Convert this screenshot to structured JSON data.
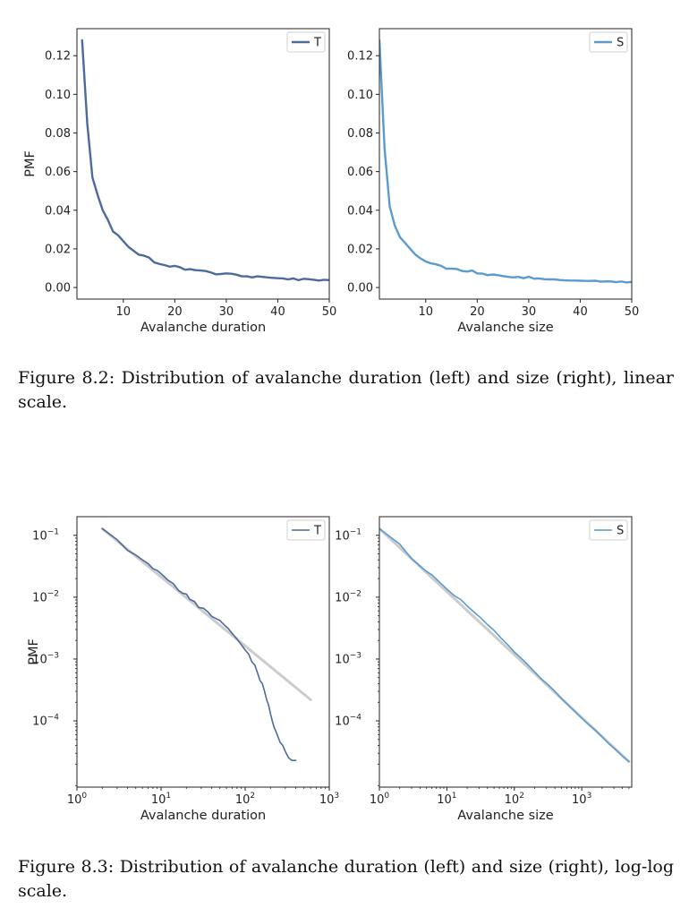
{
  "figures": [
    {
      "caption": "Figure 8.2: Distribution of avalanche duration (left) and size (right), linear scale.",
      "chart_data": [
        {
          "type": "line",
          "xlabel": "Avalanche duration",
          "ylabel": "PMF",
          "xlim": [
            1,
            50
          ],
          "ylim": [
            -0.006,
            0.134
          ],
          "xticks": [
            10,
            20,
            30,
            40,
            50
          ],
          "yticks": [
            0.0,
            0.02,
            0.04,
            0.06,
            0.08,
            0.1,
            0.12
          ],
          "ytick_labels": [
            "0.00",
            "0.02",
            "0.04",
            "0.06",
            "0.08",
            "0.10",
            "0.12"
          ],
          "legend": "top-right",
          "series": [
            {
              "name": "T",
              "color": "#4c6a9c",
              "x": [
                2,
                3,
                4,
                5,
                6,
                7,
                8,
                9,
                10,
                11,
                12,
                13,
                14,
                15,
                16,
                17,
                18,
                19,
                20,
                21,
                22,
                23,
                24,
                25,
                26,
                27,
                28,
                29,
                30,
                31,
                32,
                33,
                34,
                35,
                36,
                37,
                38,
                39,
                40,
                41,
                42,
                43,
                44,
                45,
                46,
                47,
                48,
                49,
                50
              ],
              "y": [
                0.128,
                0.085,
                0.057,
                0.048,
                0.04,
                0.035,
                0.029,
                0.027,
                0.024,
                0.021,
                0.019,
                0.017,
                0.0165,
                0.0155,
                0.013,
                0.0122,
                0.0116,
                0.0108,
                0.0112,
                0.0105,
                0.0092,
                0.0095,
                0.009,
                0.0088,
                0.0085,
                0.0078,
                0.0068,
                0.007,
                0.0073,
                0.0071,
                0.0066,
                0.0058,
                0.0058,
                0.0052,
                0.0058,
                0.0055,
                0.0052,
                0.005,
                0.0048,
                0.0047,
                0.0042,
                0.0047,
                0.0038,
                0.0045,
                0.0043,
                0.004,
                0.0036,
                0.004,
                0.0038
              ]
            }
          ]
        },
        {
          "type": "line",
          "xlabel": "Avalanche size",
          "ylabel": "",
          "xlim": [
            1,
            50
          ],
          "ylim": [
            -0.006,
            0.134
          ],
          "xticks": [
            10,
            20,
            30,
            40,
            50
          ],
          "yticks": [
            0.0,
            0.02,
            0.04,
            0.06,
            0.08,
            0.1,
            0.12
          ],
          "ytick_labels": [
            "0.00",
            "0.02",
            "0.04",
            "0.06",
            "0.08",
            "0.10",
            "0.12"
          ],
          "legend": "top-right",
          "series": [
            {
              "name": "S",
              "color": "#5b9bd0",
              "x": [
                1,
                2,
                3,
                4,
                5,
                6,
                7,
                8,
                9,
                10,
                11,
                12,
                13,
                14,
                15,
                16,
                17,
                18,
                19,
                20,
                21,
                22,
                23,
                24,
                25,
                26,
                27,
                28,
                29,
                30,
                31,
                32,
                33,
                34,
                35,
                36,
                37,
                38,
                39,
                40,
                41,
                42,
                43,
                44,
                45,
                46,
                47,
                48,
                49,
                50
              ],
              "y": [
                0.128,
                0.072,
                0.042,
                0.032,
                0.026,
                0.023,
                0.02,
                0.017,
                0.015,
                0.0135,
                0.0125,
                0.012,
                0.0112,
                0.0097,
                0.0098,
                0.0096,
                0.0086,
                0.0082,
                0.0088,
                0.0073,
                0.0072,
                0.0064,
                0.0067,
                0.0064,
                0.0059,
                0.0055,
                0.0052,
                0.0055,
                0.0048,
                0.0056,
                0.0046,
                0.0047,
                0.0043,
                0.0042,
                0.0042,
                0.0039,
                0.0037,
                0.0036,
                0.0036,
                0.0035,
                0.0034,
                0.0034,
                0.0035,
                0.003,
                0.0032,
                0.0031,
                0.0028,
                0.0031,
                0.0026,
                0.0029
              ]
            }
          ]
        }
      ]
    },
    {
      "caption": "Figure 8.3: Distribution of avalanche duration (left) and size (right), log-log scale.",
      "chart_data": [
        {
          "type": "line",
          "scale": "log-log",
          "xlabel": "Avalanche duration",
          "ylabel": "PMF",
          "xlim": [
            1,
            1000
          ],
          "ylim": [
            8.5e-06,
            0.2
          ],
          "xticks": [
            1,
            10,
            100,
            1000
          ],
          "xtick_exponents": [
            "0",
            "1",
            "2",
            "3"
          ],
          "yticks": [
            0.1,
            0.01,
            0.001,
            0.0001
          ],
          "ytick_exponents": [
            "−1",
            "−2",
            "−3",
            "−4"
          ],
          "legend": "top-right",
          "series": [
            {
              "name": "T",
              "color": "#4c6a9c",
              "x": [
                2,
                3,
                4,
                5,
                6,
                7,
                8,
                9,
                10,
                12,
                14,
                16,
                18,
                20,
                22,
                25,
                28,
                32,
                36,
                40,
                45,
                50,
                56,
                63,
                70,
                80,
                90,
                100,
                110,
                120,
                130,
                140,
                150,
                160,
                170,
                180,
                190,
                200,
                210,
                220,
                240,
                260,
                280,
                300,
                330,
                360,
                400
              ],
              "y": [
                0.128,
                0.085,
                0.057,
                0.048,
                0.04,
                0.035,
                0.029,
                0.027,
                0.024,
                0.019,
                0.0165,
                0.013,
                0.0116,
                0.0112,
                0.0092,
                0.0085,
                0.0068,
                0.0066,
                0.0058,
                0.0049,
                0.0045,
                0.0042,
                0.0036,
                0.0031,
                0.0026,
                0.0021,
                0.0017,
                0.0014,
                0.0012,
                0.0009,
                0.0008,
                0.0006,
                0.00045,
                0.0004,
                0.0003,
                0.00022,
                0.00018,
                0.00013,
                0.0001,
                8e-05,
                6e-05,
                4.5e-05,
                4e-05,
                3.2e-05,
                2.5e-05,
                2.3e-05,
                2.3e-05
              ]
            },
            {
              "name": "",
              "color": "#cccccc",
              "x": [
                2,
                600
              ],
              "y": [
                0.128,
                0.00022
              ]
            }
          ]
        },
        {
          "type": "line",
          "scale": "log-log",
          "xlabel": "Avalanche size",
          "ylabel": "",
          "xlim": [
            1,
            5500
          ],
          "ylim": [
            8.5e-06,
            0.2
          ],
          "xticks": [
            1,
            10,
            100,
            1000
          ],
          "xtick_exponents": [
            "0",
            "1",
            "2",
            "3"
          ],
          "yticks": [
            0.1,
            0.01,
            0.001,
            0.0001
          ],
          "ytick_exponents": [
            "−1",
            "−2",
            "−3",
            "−4"
          ],
          "legend": "top-right",
          "series": [
            {
              "name": "S",
              "color": "#5b9bd0",
              "x": [
                1,
                2,
                3,
                4,
                5,
                6,
                8,
                10,
                13,
                16,
                20,
                25,
                32,
                40,
                50,
                63,
                80,
                100,
                130,
                160,
                200,
                250,
                320,
                400,
                500,
                630,
                800,
                1000,
                1300,
                1600,
                2000,
                2500,
                3200,
                4000,
                5000
              ],
              "y": [
                0.128,
                0.072,
                0.042,
                0.032,
                0.026,
                0.023,
                0.017,
                0.0135,
                0.0105,
                0.0092,
                0.0072,
                0.0058,
                0.0046,
                0.0036,
                0.0029,
                0.0022,
                0.0017,
                0.0013,
                0.001,
                0.0008,
                0.00062,
                0.00048,
                0.00038,
                0.0003,
                0.00023,
                0.00018,
                0.00014,
                0.00011,
                8.5e-05,
                7e-05,
                5.5e-05,
                4.3e-05,
                3.4e-05,
                2.7e-05,
                2.2e-05
              ]
            },
            {
              "name": "",
              "color": "#cccccc",
              "x": [
                1,
                5000
              ],
              "y": [
                0.128,
                2.2e-05
              ]
            }
          ]
        }
      ]
    }
  ]
}
